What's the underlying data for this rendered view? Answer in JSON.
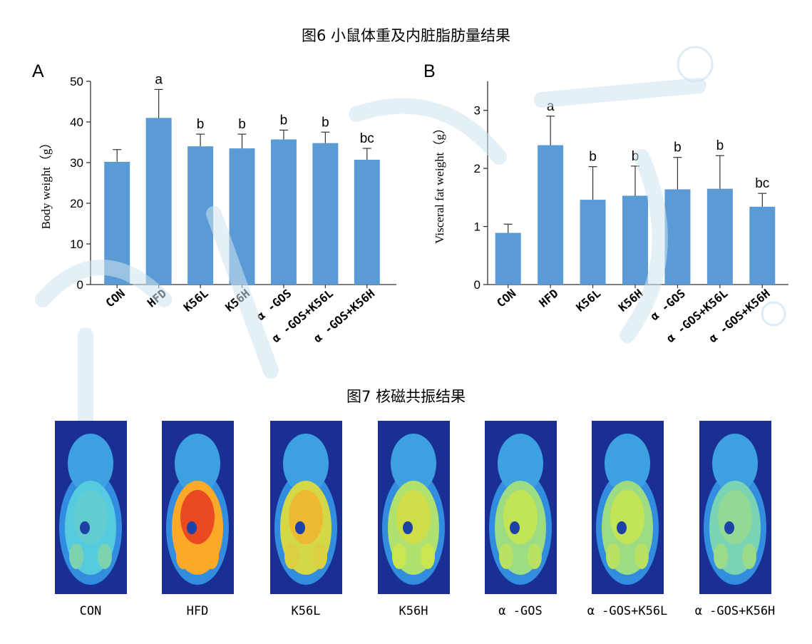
{
  "fig6_title": "图6 小鼠体重及内脏脂肪量结果",
  "fig7_title": "图7 核磁共振结果",
  "colors": {
    "bar": "#5b9bd5",
    "axis": "#333333",
    "mri_bg": "#1a2f93"
  },
  "chart_data": [
    {
      "type": "bar",
      "panel": "A",
      "ylabel": "Body weight（g）",
      "ylim": [
        0,
        50
      ],
      "yticks": [
        0,
        10,
        20,
        30,
        40,
        50
      ],
      "categories": [
        "CON",
        "HFD",
        "K56L",
        "K56H",
        "α -GOS",
        "α -GOS+K56L",
        "α -GOS+K56H"
      ],
      "values": [
        30.2,
        41.0,
        34.0,
        33.5,
        35.7,
        34.8,
        30.7
      ],
      "errors": [
        3.0,
        7.0,
        3.0,
        3.5,
        2.3,
        2.7,
        2.8
      ],
      "labels": [
        "",
        "a",
        "b",
        "b",
        "b",
        "b",
        "bc"
      ],
      "grid": false
    },
    {
      "type": "bar",
      "panel": "B",
      "ylabel": "Visceral fat weight（g）",
      "ylim": [
        0,
        3.5
      ],
      "yticks": [
        0,
        1,
        2,
        3
      ],
      "categories": [
        "CON",
        "HFD",
        "K56L",
        "K56H",
        "α -GOS",
        "α -GOS+K56L",
        "α -GOS+K56H"
      ],
      "values": [
        0.89,
        2.4,
        1.46,
        1.53,
        1.64,
        1.65,
        1.34
      ],
      "errors": [
        0.15,
        0.5,
        0.57,
        0.51,
        0.55,
        0.57,
        0.23
      ],
      "labels": [
        "",
        "a",
        "b",
        "b",
        "b",
        "b",
        "bc"
      ],
      "grid": false
    }
  ],
  "mri": {
    "labels": [
      "CON",
      "HFD",
      "K56L",
      "K56H",
      "α -GOS",
      "α -GOS+K56L",
      "α -GOS+K56H"
    ],
    "fat_intensity": [
      0.35,
      1.0,
      0.75,
      0.6,
      0.55,
      0.55,
      0.45
    ]
  }
}
